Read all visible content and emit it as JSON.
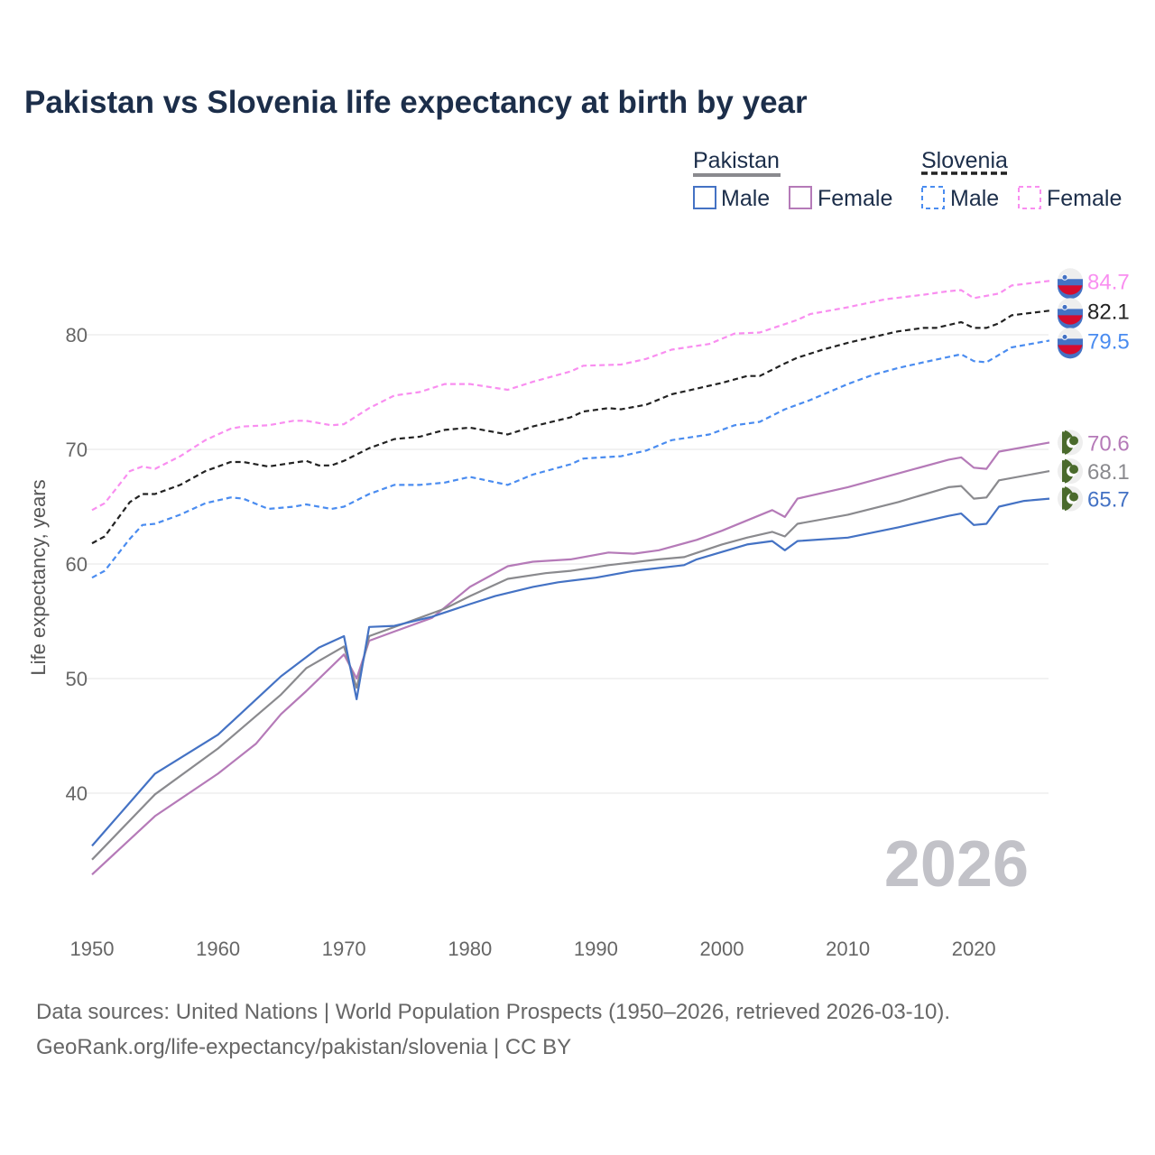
{
  "title": "Pakistan vs Slovenia life expectancy at birth by year",
  "sources": [
    "Data sources: United Nations | World Population Prospects (1950–2026, retrieved 2026-03-10).",
    "GeoRank.org/life-expectancy/pakistan/slovenia | CC BY"
  ],
  "year_watermark": "2026",
  "legend": {
    "groups": [
      {
        "name": "Pakistan",
        "items": [
          "Male",
          "Female"
        ]
      },
      {
        "name": "Slovenia",
        "items": [
          "Male",
          "Female"
        ]
      }
    ]
  },
  "chart_data": {
    "type": "line",
    "title": "Pakistan vs Slovenia life expectancy at birth by year",
    "xlabel": "",
    "ylabel": "Life expectancy, years",
    "xlim": [
      1950,
      2026
    ],
    "ylim": [
      30,
      87
    ],
    "xticks": [
      1950,
      1960,
      1970,
      1980,
      1990,
      2000,
      2010,
      2020
    ],
    "yticks": [
      40,
      50,
      60,
      70,
      80
    ],
    "grid": true,
    "legend_position": "top-right",
    "series": [
      {
        "name": "Slovenia Female",
        "country": "Slovenia",
        "color": "#f98ef0",
        "dashed": true,
        "end_label": "84.7",
        "x": [
          1950,
          1951,
          1953,
          1954,
          1955,
          1957,
          1959,
          1961,
          1962,
          1964,
          1966,
          1967,
          1969,
          1970,
          1972,
          1974,
          1976,
          1978,
          1980,
          1983,
          1985,
          1988,
          1989,
          1992,
          1994,
          1996,
          1999,
          2001,
          2003,
          2006,
          2007,
          2010,
          2013,
          2016,
          2018,
          2019,
          2020,
          2022,
          2023,
          2026
        ],
        "y": [
          64.7,
          65.3,
          68.1,
          68.5,
          68.3,
          69.4,
          70.8,
          71.8,
          72.0,
          72.1,
          72.5,
          72.5,
          72.1,
          72.2,
          73.6,
          74.7,
          75.0,
          75.7,
          75.7,
          75.2,
          75.9,
          76.8,
          77.3,
          77.4,
          77.9,
          78.7,
          79.2,
          80.1,
          80.2,
          81.3,
          81.8,
          82.4,
          83.1,
          83.5,
          83.8,
          83.9,
          83.2,
          83.6,
          84.3,
          84.7
        ]
      },
      {
        "name": "Slovenia",
        "country": "Slovenia",
        "color": "#222222",
        "dashed": true,
        "end_label": "82.1",
        "x": [
          1950,
          1951,
          1953,
          1954,
          1955,
          1957,
          1959,
          1961,
          1962,
          1964,
          1967,
          1968,
          1969,
          1970,
          1972,
          1974,
          1976,
          1978,
          1980,
          1983,
          1985,
          1988,
          1989,
          1991,
          1992,
          1994,
          1996,
          1998,
          2000,
          2002,
          2003,
          2005,
          2006,
          2008,
          2010,
          2012,
          2014,
          2016,
          2017,
          2019,
          2020,
          2021,
          2022,
          2023,
          2026
        ],
        "y": [
          61.8,
          62.4,
          65.4,
          66.1,
          66.1,
          66.9,
          68.1,
          68.9,
          68.9,
          68.5,
          69.0,
          68.6,
          68.6,
          69.0,
          70.1,
          70.9,
          71.1,
          71.7,
          71.9,
          71.3,
          72.0,
          72.8,
          73.3,
          73.6,
          73.5,
          73.9,
          74.8,
          75.3,
          75.8,
          76.4,
          76.4,
          77.5,
          78.0,
          78.7,
          79.3,
          79.8,
          80.3,
          80.6,
          80.6,
          81.1,
          80.6,
          80.6,
          81.0,
          81.7,
          82.1
        ]
      },
      {
        "name": "Slovenia Male",
        "country": "Slovenia",
        "color": "#4a8cf0",
        "dashed": true,
        "end_label": "79.5",
        "x": [
          1950,
          1951,
          1953,
          1954,
          1955,
          1957,
          1959,
          1961,
          1962,
          1964,
          1966,
          1967,
          1969,
          1970,
          1972,
          1974,
          1976,
          1978,
          1980,
          1983,
          1985,
          1988,
          1989,
          1992,
          1994,
          1996,
          1999,
          2001,
          2003,
          2005,
          2007,
          2010,
          2012,
          2014,
          2016,
          2019,
          2020,
          2021,
          2023,
          2026
        ],
        "y": [
          58.8,
          59.4,
          62.2,
          63.4,
          63.5,
          64.3,
          65.3,
          65.8,
          65.7,
          64.8,
          65.0,
          65.2,
          64.8,
          65.0,
          66.1,
          66.9,
          66.9,
          67.1,
          67.6,
          66.9,
          67.8,
          68.7,
          69.2,
          69.4,
          69.9,
          70.8,
          71.3,
          72.1,
          72.4,
          73.5,
          74.3,
          75.7,
          76.5,
          77.1,
          77.6,
          78.3,
          77.7,
          77.6,
          78.9,
          79.5
        ]
      },
      {
        "name": "Pakistan Female",
        "country": "Pakistan",
        "color": "#b57ab8",
        "dashed": false,
        "end_label": "70.6",
        "x": [
          1950,
          1955,
          1960,
          1963,
          1965,
          1967,
          1970,
          1971,
          1972,
          1974,
          1977,
          1980,
          1983,
          1985,
          1988,
          1991,
          1993,
          1995,
          1998,
          2000,
          2004,
          2005,
          2006,
          2010,
          2014,
          2018,
          2019,
          2020,
          2021,
          2022,
          2026
        ],
        "y": [
          32.9,
          38.0,
          41.7,
          44.3,
          46.9,
          48.9,
          52.1,
          50.0,
          53.3,
          54.1,
          55.3,
          58.0,
          59.8,
          60.2,
          60.4,
          61.0,
          60.9,
          61.2,
          62.1,
          62.9,
          64.7,
          64.1,
          65.7,
          66.7,
          67.9,
          69.1,
          69.3,
          68.4,
          68.3,
          69.8,
          70.6
        ]
      },
      {
        "name": "Pakistan",
        "country": "Pakistan",
        "color": "#8a8a8e",
        "dashed": false,
        "end_label": "68.1",
        "x": [
          1950,
          1955,
          1960,
          1965,
          1967,
          1970,
          1971,
          1972,
          1975,
          1978,
          1980,
          1983,
          1986,
          1988,
          1991,
          1995,
          1997,
          2000,
          2002,
          2004,
          2005,
          2006,
          2010,
          2014,
          2018,
          2019,
          2020,
          2021,
          2022,
          2026
        ],
        "y": [
          34.2,
          39.9,
          43.9,
          48.6,
          50.9,
          52.8,
          49.2,
          53.7,
          54.9,
          56.1,
          57.2,
          58.7,
          59.2,
          59.4,
          59.9,
          60.4,
          60.6,
          61.7,
          62.3,
          62.8,
          62.4,
          63.5,
          64.3,
          65.4,
          66.7,
          66.8,
          65.7,
          65.8,
          67.3,
          68.1
        ]
      },
      {
        "name": "Pakistan Male",
        "country": "Pakistan",
        "color": "#4472c4",
        "dashed": false,
        "end_label": "65.7",
        "x": [
          1950,
          1955,
          1960,
          1965,
          1968,
          1970,
          1971,
          1972,
          1974,
          1977,
          1980,
          1982,
          1985,
          1987,
          1990,
          1993,
          1997,
          1998,
          2002,
          2004,
          2005,
          2006,
          2010,
          2014,
          2018,
          2019,
          2020,
          2021,
          2022,
          2024,
          2026
        ],
        "y": [
          35.4,
          41.7,
          45.1,
          50.2,
          52.7,
          53.7,
          48.2,
          54.5,
          54.6,
          55.4,
          56.5,
          57.2,
          58.0,
          58.4,
          58.8,
          59.4,
          59.9,
          60.4,
          61.7,
          62.0,
          61.2,
          62.0,
          62.3,
          63.2,
          64.2,
          64.4,
          63.4,
          63.5,
          65.0,
          65.5,
          65.7
        ]
      }
    ]
  }
}
